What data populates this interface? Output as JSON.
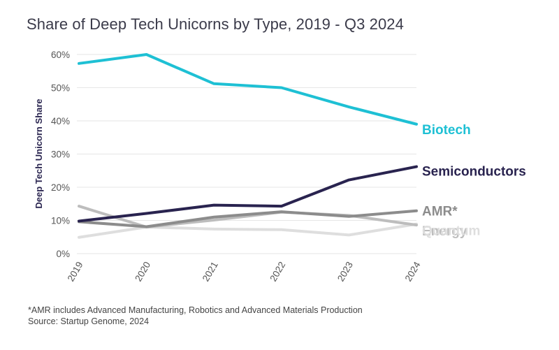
{
  "chart_data": {
    "type": "line",
    "title": "Share of Deep Tech Unicorns by Type, 2019 - Q3 2024",
    "xlabel": "",
    "ylabel": "Deep Tech Unicorn Share",
    "x": [
      "2019",
      "2020",
      "2021",
      "2022",
      "2023",
      "2024"
    ],
    "ylim": [
      0,
      60
    ],
    "yticks": [
      0,
      10,
      20,
      30,
      40,
      50,
      60
    ],
    "ytick_labels": [
      "0%",
      "10%",
      "20%",
      "30%",
      "40%",
      "50%",
      "60%"
    ],
    "grid": true,
    "series": [
      {
        "name": "Biotech",
        "color": "#1ec0d4",
        "values": [
          57.3,
          60.0,
          51.2,
          50.0,
          44.2,
          39.0
        ]
      },
      {
        "name": "Semiconductors",
        "color": "#29234f",
        "values": [
          9.8,
          12.1,
          14.6,
          14.3,
          22.2,
          26.2
        ]
      },
      {
        "name": "AMR*",
        "color": "#8c8c8c",
        "values": [
          9.6,
          8.1,
          11.0,
          12.6,
          11.2,
          12.9
        ]
      },
      {
        "name": "Energy",
        "color": "#bdbdbd",
        "values": [
          14.3,
          8.0,
          10.1,
          12.5,
          11.5,
          8.6
        ]
      },
      {
        "name": "Quantum",
        "color": "#dedede",
        "values": [
          4.9,
          8.0,
          7.4,
          7.2,
          5.6,
          8.9
        ]
      }
    ]
  },
  "footnote": {
    "line1": "*AMR includes Advanced Manufacturing, Robotics and Advanced Materials Production",
    "line2": "Source: Startup Genome, 2024"
  }
}
